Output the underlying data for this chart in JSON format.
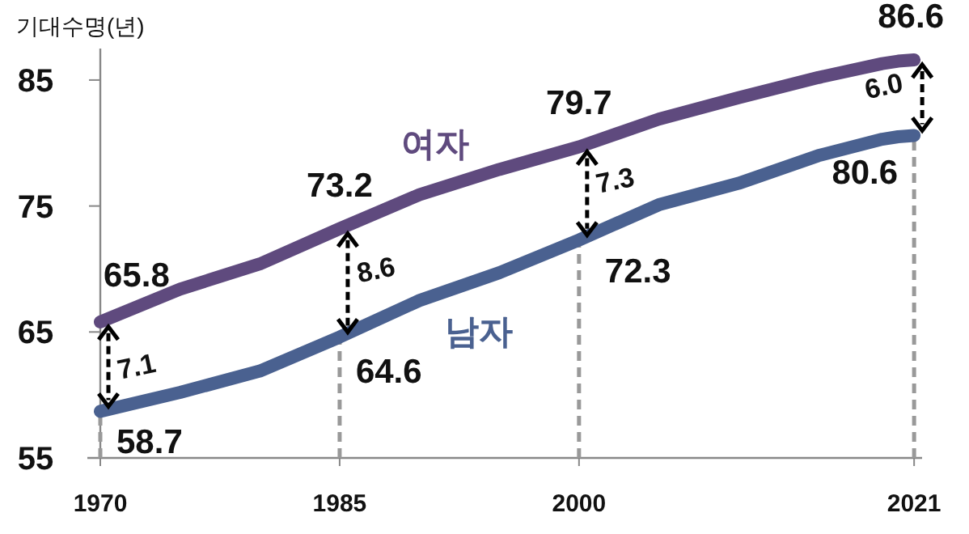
{
  "chart_data": {
    "type": "line",
    "ylabel": "기대수명(년)",
    "x": [
      1970,
      1975,
      1980,
      1985,
      1990,
      1995,
      2000,
      2005,
      2010,
      2015,
      2019,
      2020,
      2021
    ],
    "series": [
      {
        "name": "여자",
        "color": "#5f4a7e",
        "values": [
          65.8,
          68.4,
          70.4,
          73.2,
          75.9,
          77.9,
          79.7,
          81.9,
          83.6,
          85.2,
          86.3,
          86.5,
          86.6
        ]
      },
      {
        "name": "남자",
        "color": "#4a6190",
        "values": [
          58.7,
          60.2,
          61.9,
          64.6,
          67.5,
          69.7,
          72.3,
          75.1,
          76.8,
          79.0,
          80.3,
          80.5,
          80.6
        ]
      }
    ],
    "xlim": [
      1970,
      2021.5
    ],
    "ylim": [
      55,
      87.5
    ],
    "xticks": [
      1970,
      1985,
      2000,
      2021
    ],
    "yticks": [
      55,
      65,
      75,
      85
    ],
    "grid": false,
    "marker": "none",
    "line_style": "solid",
    "ref_lines": [
      {
        "axis": "x",
        "value": 1970,
        "label": null,
        "color": "#999999",
        "line_style": "dashed"
      },
      {
        "axis": "x",
        "value": 1985,
        "label": null,
        "color": "#999999",
        "line_style": "dashed"
      },
      {
        "axis": "x",
        "value": 2000,
        "label": null,
        "color": "#999999",
        "line_style": "dashed"
      },
      {
        "axis": "x",
        "value": 2021,
        "label": null,
        "color": "#999999",
        "line_style": "dashed"
      }
    ],
    "annotations": [
      {
        "text": "65.8",
        "x": 1970,
        "y": 65.8
      },
      {
        "text": "73.2",
        "x": 1985,
        "y": 73.2
      },
      {
        "text": "79.7",
        "x": 2000,
        "y": 79.7
      },
      {
        "text": "86.6",
        "x": 2021,
        "y": 86.6
      },
      {
        "text": "58.7",
        "x": 1970,
        "y": 58.7
      },
      {
        "text": "64.6",
        "x": 1985,
        "y": 64.6
      },
      {
        "text": "72.3",
        "x": 2000,
        "y": 72.3
      },
      {
        "text": "80.6",
        "x": 2021,
        "y": 80.6
      },
      "7.1",
      "8.6",
      "7.3",
      "6.0"
    ]
  }
}
